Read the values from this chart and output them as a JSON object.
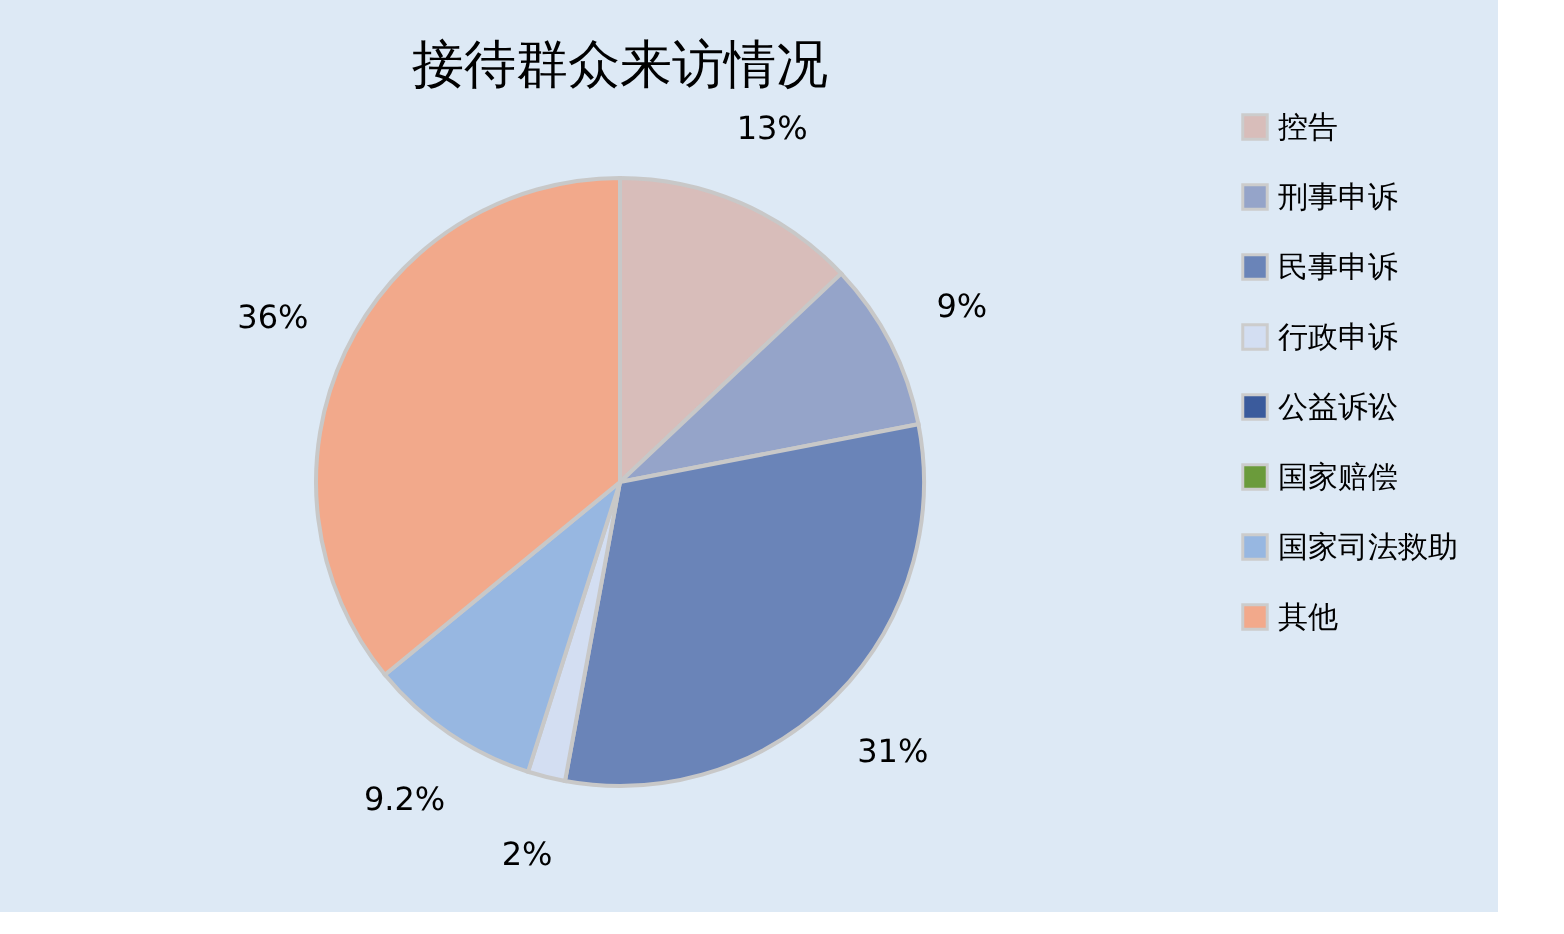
{
  "chart_data": {
    "type": "pie",
    "title": "接待群众来访情况",
    "categories": [
      "控告",
      "刑事申诉",
      "民事申诉",
      "行政申诉",
      "公益诉讼",
      "国家赔偿",
      "国家司法救助",
      "其他"
    ],
    "values": [
      13,
      9,
      31,
      2,
      0,
      0,
      9.2,
      36
    ],
    "value_labels": [
      "13%",
      "9%",
      "31%",
      "2%",
      null,
      null,
      "9.2%",
      "36%"
    ],
    "colors": [
      "#d8bdba",
      "#95a4c9",
      "#6a84b8",
      "#d3def2",
      "#3b5b9c",
      "#6b9b3b",
      "#97b7e1",
      "#f2a98b"
    ],
    "legend": "right"
  }
}
